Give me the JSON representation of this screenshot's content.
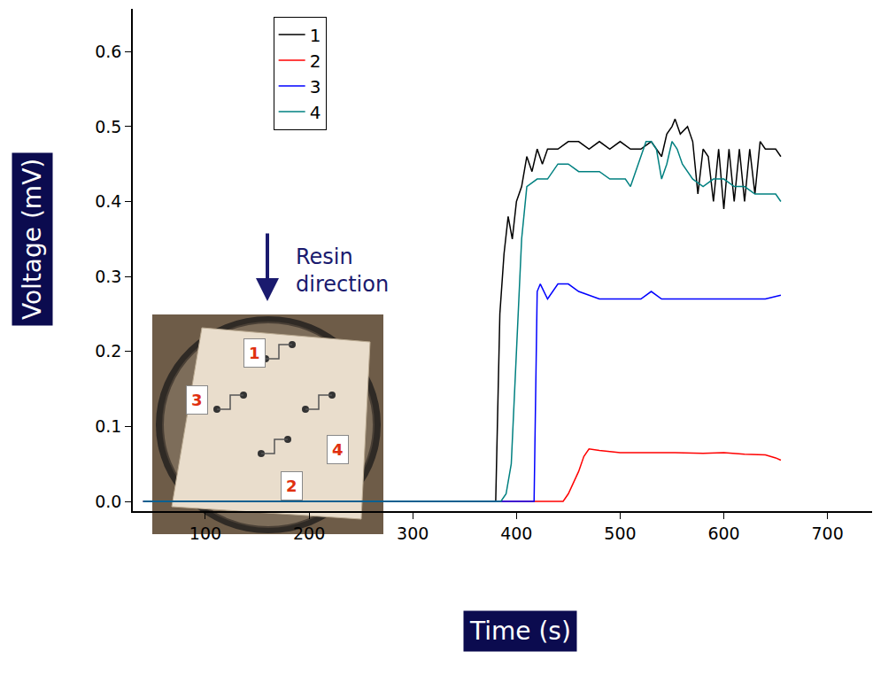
{
  "chart_data": {
    "type": "line",
    "xlabel": "Time (s)",
    "ylabel": "Voltage (mV)",
    "xlim": [
      30,
      743
    ],
    "ylim": [
      -0.013,
      0.657
    ],
    "xticks": [
      100,
      200,
      300,
      400,
      500,
      600,
      700
    ],
    "yticks": [
      {
        "value": 0,
        "label": "0.0"
      },
      0.1,
      0.2,
      0.3,
      0.4,
      0.5,
      0.6
    ],
    "grid": false,
    "legend": "top-left",
    "annotations": [
      "Resin direction",
      "1",
      "2",
      "3",
      "4"
    ],
    "series": [
      {
        "name": "1",
        "color": "#000000",
        "x": [
          40,
          100,
          200,
          300,
          380,
          384,
          388,
          392,
          396,
          400,
          405,
          410,
          415,
          420,
          425,
          430,
          440,
          450,
          460,
          470,
          480,
          490,
          500,
          510,
          520,
          530,
          540,
          545,
          550,
          553,
          558,
          565,
          570,
          575,
          580,
          585,
          590,
          595,
          600,
          605,
          610,
          615,
          620,
          625,
          630,
          635,
          640,
          650,
          655
        ],
        "values": [
          0,
          0,
          0,
          0,
          0,
          0.25,
          0.33,
          0.38,
          0.35,
          0.4,
          0.42,
          0.46,
          0.44,
          0.47,
          0.45,
          0.47,
          0.47,
          0.48,
          0.48,
          0.47,
          0.48,
          0.47,
          0.48,
          0.47,
          0.47,
          0.48,
          0.46,
          0.49,
          0.5,
          0.51,
          0.49,
          0.5,
          0.48,
          0.41,
          0.47,
          0.46,
          0.4,
          0.47,
          0.39,
          0.47,
          0.4,
          0.47,
          0.4,
          0.47,
          0.41,
          0.48,
          0.47,
          0.47,
          0.46
        ]
      },
      {
        "name": "2",
        "color": "#ff0000",
        "x": [
          40,
          100,
          200,
          300,
          400,
          445,
          450,
          460,
          465,
          470,
          480,
          500,
          520,
          550,
          580,
          600,
          620,
          640,
          650,
          655
        ],
        "values": [
          0,
          0,
          0,
          0,
          0,
          0,
          0.01,
          0.04,
          0.06,
          0.07,
          0.068,
          0.065,
          0.065,
          0.065,
          0.064,
          0.065,
          0.063,
          0.062,
          0.058,
          0.055
        ]
      },
      {
        "name": "3",
        "color": "#0000ff",
        "x": [
          40,
          100,
          200,
          300,
          400,
          417,
          420,
          423,
          430,
          440,
          450,
          460,
          480,
          500,
          520,
          530,
          540,
          560,
          580,
          600,
          620,
          640,
          655
        ],
        "values": [
          0,
          0,
          0,
          0,
          0,
          0,
          0.28,
          0.29,
          0.27,
          0.29,
          0.29,
          0.28,
          0.27,
          0.27,
          0.27,
          0.28,
          0.27,
          0.27,
          0.27,
          0.27,
          0.27,
          0.27,
          0.275
        ]
      },
      {
        "name": "4",
        "color": "#008080",
        "x": [
          40,
          100,
          200,
          300,
          385,
          390,
          395,
          400,
          405,
          410,
          420,
          430,
          440,
          450,
          460,
          470,
          480,
          490,
          500,
          505,
          510,
          515,
          520,
          525,
          530,
          535,
          540,
          545,
          550,
          555,
          560,
          570,
          580,
          590,
          600,
          610,
          620,
          630,
          640,
          650,
          655
        ],
        "values": [
          0,
          0,
          0,
          0,
          0,
          0.01,
          0.05,
          0.2,
          0.35,
          0.42,
          0.43,
          0.43,
          0.45,
          0.45,
          0.44,
          0.44,
          0.44,
          0.43,
          0.43,
          0.43,
          0.42,
          0.44,
          0.46,
          0.48,
          0.48,
          0.47,
          0.43,
          0.45,
          0.48,
          0.47,
          0.45,
          0.43,
          0.42,
          0.43,
          0.43,
          0.42,
          0.42,
          0.41,
          0.41,
          0.41,
          0.4
        ]
      }
    ]
  }
}
